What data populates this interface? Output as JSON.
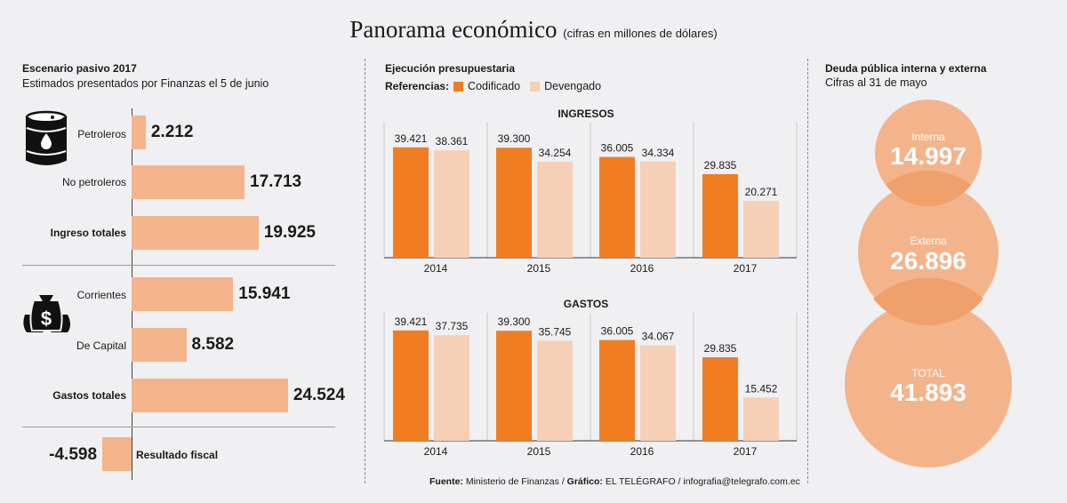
{
  "header": {
    "title": "Panorama económico",
    "subtitle": "(cifras en millones de dólares)"
  },
  "colors": {
    "codificado": "#f07d22",
    "devengado": "#f5d0b6",
    "bar_light": "#f4b48b",
    "circle": "#f4b48b",
    "circle_mid": "#f0a06a"
  },
  "icons": [
    "oil-barrel-icon",
    "money-bags-icon"
  ],
  "left": {
    "title": "Escenario pasivo 2017",
    "subtitle": "Estimados presentados por Finanzas el 5 de junio",
    "resultado_label": "Resultado fiscal",
    "resultado_value": "-4.598"
  },
  "middle": {
    "title": "Ejecución presupuestaria",
    "legend_title": "Referencias:",
    "legend_codificado": "Codificado",
    "legend_devengado": "Devengado"
  },
  "right": {
    "title": "Deuda pública interna y externa",
    "subtitle": "Cifras al 31 de mayo",
    "interna_label": "Interna",
    "interna_value": "14.997",
    "externa_label": "Externa",
    "externa_value": "26.896",
    "total_label": "TOTAL",
    "total_value": "41.893"
  },
  "footer": {
    "fuente_label": "Fuente:",
    "fuente_text": "Ministerio de Finanzas",
    "grafico_label": "Gráfico:",
    "grafico_text": "EL TELÉGRAFO / infografia@telegrafo.com.ec"
  },
  "chart_data": [
    {
      "type": "bar",
      "orientation": "horizontal",
      "title": "Escenario pasivo 2017",
      "categories": [
        "Petroleros",
        "No petroleros",
        "Ingreso totales",
        "Corrientes",
        "De Capital",
        "Gastos totales",
        "Resultado fiscal"
      ],
      "values": [
        2212,
        17713,
        19925,
        15941,
        8582,
        24524,
        -4598
      ],
      "value_labels": [
        "2.212",
        "17.713",
        "19.925",
        "15.941",
        "8.582",
        "24.524",
        "-4.598"
      ]
    },
    {
      "type": "bar",
      "title": "INGRESOS",
      "categories": [
        "2014",
        "2015",
        "2016",
        "2017"
      ],
      "series": [
        {
          "name": "Codificado",
          "values": [
            39421,
            39300,
            36005,
            29835
          ],
          "labels": [
            "39.421",
            "39.300",
            "36.005",
            "29.835"
          ]
        },
        {
          "name": "Devengado",
          "values": [
            38361,
            34254,
            34334,
            20271
          ],
          "labels": [
            "38.361",
            "34.254",
            "34.334",
            "20.271"
          ]
        }
      ]
    },
    {
      "type": "bar",
      "title": "GASTOS",
      "categories": [
        "2014",
        "2015",
        "2016",
        "2017"
      ],
      "series": [
        {
          "name": "Codificado",
          "values": [
            39421,
            39300,
            36005,
            29835
          ],
          "labels": [
            "39.421",
            "39.300",
            "36.005",
            "29.835"
          ]
        },
        {
          "name": "Devengado",
          "values": [
            37735,
            35745,
            34067,
            15452
          ],
          "labels": [
            "37.735",
            "35.745",
            "34.067",
            "15.452"
          ]
        }
      ]
    }
  ]
}
